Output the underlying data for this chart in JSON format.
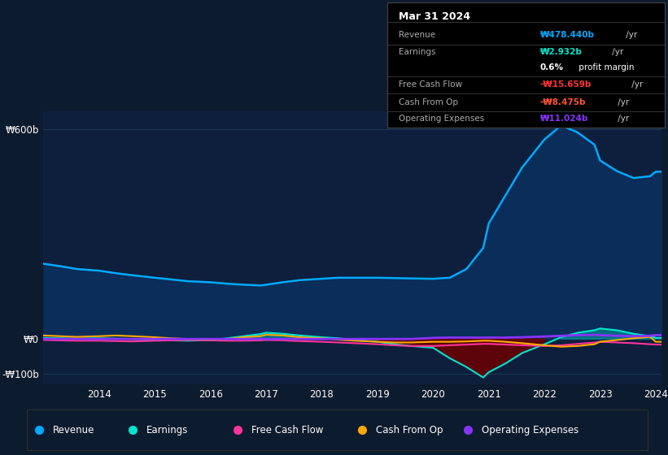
{
  "bg_color": "#0d1b2e",
  "plot_bg_color": "#0d1f3c",
  "grid_color": "#1e3a5f",
  "years": [
    2013.0,
    2013.3,
    2013.6,
    2014.0,
    2014.3,
    2014.6,
    2015.0,
    2015.3,
    2015.6,
    2016.0,
    2016.3,
    2016.6,
    2016.9,
    2017.0,
    2017.3,
    2017.6,
    2018.0,
    2018.3,
    2018.6,
    2019.0,
    2019.3,
    2019.6,
    2020.0,
    2020.3,
    2020.6,
    2020.9,
    2021.0,
    2021.3,
    2021.6,
    2022.0,
    2022.3,
    2022.6,
    2022.9,
    2023.0,
    2023.3,
    2023.6,
    2023.9,
    2024.0,
    2024.1
  ],
  "revenue": [
    215,
    208,
    200,
    195,
    188,
    182,
    175,
    170,
    165,
    162,
    158,
    155,
    153,
    155,
    162,
    168,
    172,
    175,
    175,
    175,
    174,
    173,
    172,
    175,
    200,
    260,
    330,
    410,
    490,
    570,
    610,
    590,
    555,
    510,
    480,
    460,
    465,
    478,
    478
  ],
  "earnings": [
    3,
    2,
    1,
    2,
    1,
    0,
    -2,
    -4,
    -5,
    -3,
    2,
    8,
    14,
    18,
    15,
    10,
    5,
    2,
    -3,
    -8,
    -15,
    -20,
    -25,
    -55,
    -80,
    -110,
    -95,
    -70,
    -40,
    -15,
    5,
    18,
    25,
    30,
    25,
    15,
    8,
    3,
    3
  ],
  "free_cash_flow": [
    -3,
    -4,
    -5,
    -5,
    -6,
    -7,
    -5,
    -4,
    -3,
    -4,
    -5,
    -5,
    -4,
    -3,
    -4,
    -6,
    -8,
    -10,
    -12,
    -15,
    -18,
    -20,
    -20,
    -18,
    -16,
    -14,
    -14,
    -16,
    -18,
    -20,
    -18,
    -14,
    -10,
    -8,
    -10,
    -12,
    -15,
    -16,
    -16
  ],
  "cash_from_op": [
    10,
    8,
    6,
    8,
    10,
    8,
    5,
    2,
    0,
    -2,
    0,
    5,
    8,
    12,
    10,
    5,
    2,
    -2,
    -5,
    -8,
    -10,
    -10,
    -8,
    -8,
    -7,
    -5,
    -5,
    -8,
    -12,
    -18,
    -22,
    -20,
    -15,
    -8,
    -3,
    2,
    6,
    -8,
    -8
  ],
  "op_expenses": [
    0,
    0,
    0,
    0,
    0,
    0,
    0,
    0,
    0,
    0,
    0,
    0,
    0,
    0,
    0,
    0,
    0,
    0,
    0,
    0,
    0,
    0,
    3,
    4,
    4,
    4,
    4,
    4,
    5,
    7,
    9,
    11,
    12,
    11,
    9,
    8,
    9,
    11,
    11
  ],
  "ylim_min": -130,
  "ylim_max": 650,
  "yticks": [
    -100,
    0,
    600
  ],
  "ytick_labels": [
    "-₩100b",
    "₩0",
    "₩600b"
  ],
  "xticks": [
    2014,
    2015,
    2016,
    2017,
    2018,
    2019,
    2020,
    2021,
    2022,
    2023,
    2024
  ],
  "revenue_color": "#00aaff",
  "revenue_fill_color": "#0a2d5a",
  "earnings_color": "#00e5cc",
  "earnings_fill_pos_color": "#00e5cc",
  "earnings_fill_neg_color": "#6B0000",
  "free_cash_flow_color": "#ff3399",
  "cash_from_op_color": "#ffaa00",
  "op_expenses_color": "#8833ff",
  "tooltip_bg": "#000000",
  "tooltip_border": "#333333",
  "tooltip_title": "Mar 31 2024",
  "tooltip_rows": [
    {
      "label": "Revenue",
      "value": "₩478.440b",
      "unit": " /yr",
      "color": "#00aaff"
    },
    {
      "label": "Earnings",
      "value": "₩2.932b",
      "unit": " /yr",
      "color": "#00e5cc"
    },
    {
      "label": "profit_margin",
      "value": "0.6%",
      "unit": " profit margin",
      "color": "#ffffff"
    },
    {
      "label": "Free Cash Flow",
      "value": "-₩15.659b",
      "unit": " /yr",
      "color": "#ff3333"
    },
    {
      "label": "Cash From Op",
      "value": "-₩8.475b",
      "unit": " /yr",
      "color": "#ff5533"
    },
    {
      "label": "Operating Expenses",
      "value": "₩11.024b",
      "unit": " /yr",
      "color": "#8833ff"
    }
  ],
  "legend_items": [
    {
      "label": "Revenue",
      "color": "#00aaff"
    },
    {
      "label": "Earnings",
      "color": "#00e5cc"
    },
    {
      "label": "Free Cash Flow",
      "color": "#ff3399"
    },
    {
      "label": "Cash From Op",
      "color": "#ffaa00"
    },
    {
      "label": "Operating Expenses",
      "color": "#8833ff"
    }
  ]
}
